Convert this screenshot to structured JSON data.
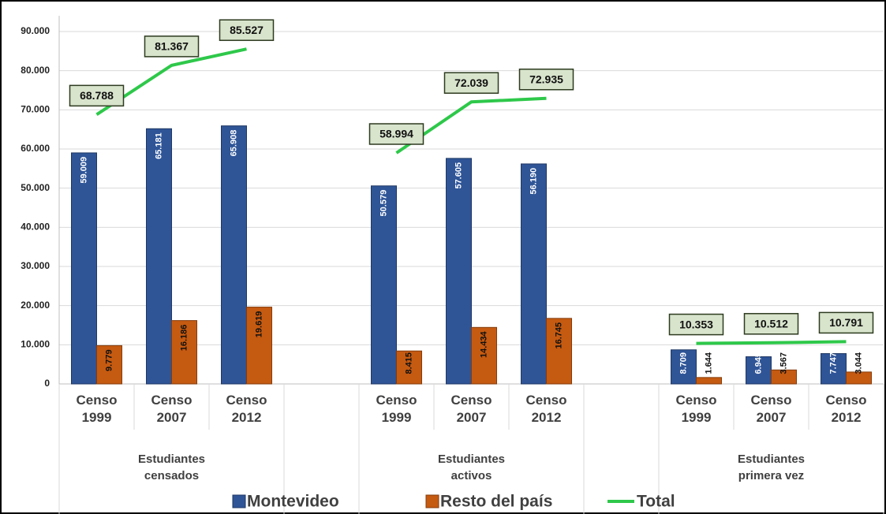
{
  "chart_data": {
    "type": "bar",
    "categories": [
      "Censo 1999",
      "Censo 2007",
      "Censo 2012",
      null,
      "Censo 1999",
      "Censo 2007",
      "Censo 2012",
      null,
      "Censo 1999",
      "Censo 2007",
      "Censo 2012"
    ],
    "groups": [
      "Estudiantes censados",
      "Estudiantes activos",
      "Estudiantes primera vez"
    ],
    "ylim": [
      0,
      90000
    ],
    "yticks": [
      0,
      {
        "value": 10000,
        "label": "10.000"
      },
      {
        "value": 20000,
        "label": "20.000"
      },
      {
        "value": 30000,
        "label": "30.000"
      },
      {
        "value": 40000,
        "label": "40.000"
      },
      {
        "value": 50000,
        "label": "50.000"
      },
      {
        "value": 60000,
        "label": "60.000"
      },
      {
        "value": 70000,
        "label": "70.000"
      },
      {
        "value": 80000,
        "label": "80.000"
      },
      {
        "value": 90000,
        "label": "90.000"
      }
    ],
    "grid": true,
    "legend": "bottom",
    "series": [
      {
        "name": "Montevideo",
        "type": "bar",
        "color": "#2f5597",
        "values": [
          59009,
          65181,
          65908,
          null,
          50579,
          57605,
          56190,
          null,
          8709,
          6945,
          7747
        ],
        "value_labels": [
          "59.009",
          "65.181",
          "65.908",
          null,
          "50.579",
          "57.605",
          "56.190",
          null,
          "8.709",
          "6.945",
          "7.747"
        ]
      },
      {
        "name": "Resto del país",
        "type": "bar",
        "color": "#c55a11",
        "values": [
          9779,
          16186,
          19619,
          null,
          8415,
          14434,
          16745,
          null,
          1644,
          3567,
          3044
        ],
        "value_labels": [
          "9.779",
          "16.186",
          "19.619",
          null,
          "8.415",
          "14.434",
          "16.745",
          null,
          "1.644",
          "3.567",
          "3.044"
        ]
      },
      {
        "name": "Total",
        "type": "line",
        "color": "#2ec84a",
        "values": [
          68788,
          81367,
          85527,
          null,
          58994,
          72039,
          72935,
          null,
          10353,
          10512,
          10791
        ],
        "value_labels": [
          "68.788",
          "81.367",
          "85.527",
          null,
          "58.994",
          "72.039",
          "72.935",
          null,
          "10.353",
          "10.512",
          "10.791"
        ]
      }
    ]
  }
}
